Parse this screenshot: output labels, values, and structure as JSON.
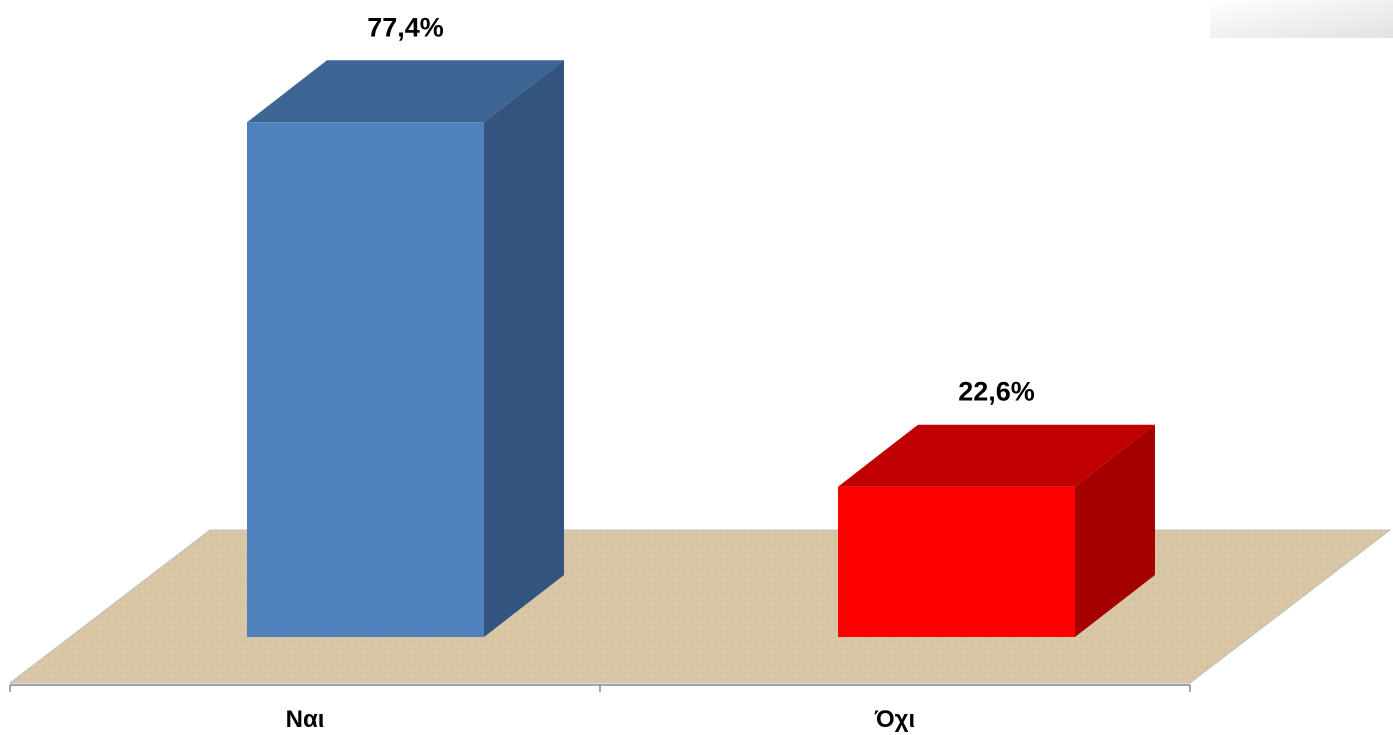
{
  "chart_data": {
    "type": "bar",
    "style": "3d",
    "categories": [
      "Ναι",
      "Όχι"
    ],
    "values": [
      77.4,
      22.6
    ],
    "value_labels": [
      "77,4%",
      "22,6%"
    ],
    "ylim": [
      0,
      100
    ],
    "grid": false,
    "legend": "none",
    "colors": {
      "bars": [
        "#4f81bd",
        "#ff0000"
      ],
      "bar_tops": [
        "#3d6594",
        "#c00000"
      ],
      "bar_sides": [
        "#33547e",
        "#a50000"
      ],
      "floor": "#d9c7a6",
      "axis": "#868686"
    }
  }
}
